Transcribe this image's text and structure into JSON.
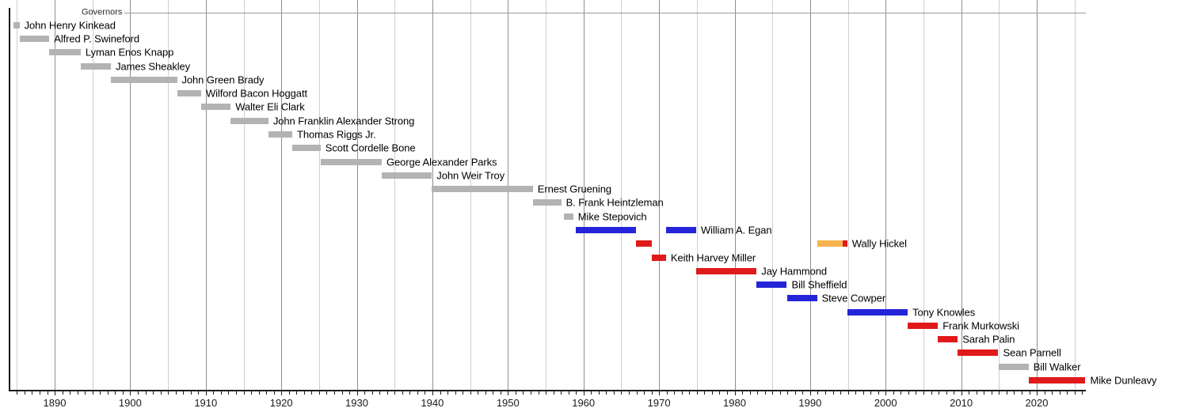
{
  "chart_data": {
    "type": "timeline",
    "title": "Governors",
    "x_axis": {
      "min": 1884.0,
      "max": 2026.5,
      "decade_labels": [
        "1890",
        "1900",
        "1910",
        "1920",
        "1930",
        "1940",
        "1950",
        "1960",
        "1970",
        "1980",
        "1990",
        "2000",
        "2010",
        "2020"
      ],
      "gridline_interval_years": 5,
      "tick_interval_years": 1,
      "grid": true
    },
    "colors": {
      "gray": "#b3b3b3",
      "blue": "#2424d9",
      "red": "#e01a1a",
      "orange": "#f7b34d"
    },
    "governors": [
      {
        "name": "John Henry Kinkead",
        "segments": [
          {
            "start": 1884.5,
            "end": 1885.35,
            "color": "gray"
          }
        ]
      },
      {
        "name": "Alfred P. Swineford",
        "segments": [
          {
            "start": 1885.35,
            "end": 1889.3,
            "color": "gray"
          }
        ]
      },
      {
        "name": "Lyman Enos Knapp",
        "segments": [
          {
            "start": 1889.3,
            "end": 1893.45,
            "color": "gray"
          }
        ]
      },
      {
        "name": "James Sheakley",
        "segments": [
          {
            "start": 1893.45,
            "end": 1897.45,
            "color": "gray"
          }
        ]
      },
      {
        "name": "John Green Brady",
        "segments": [
          {
            "start": 1897.45,
            "end": 1906.2,
            "color": "gray"
          }
        ]
      },
      {
        "name": "Wilford Bacon Hoggatt",
        "segments": [
          {
            "start": 1906.2,
            "end": 1909.4,
            "color": "gray"
          }
        ]
      },
      {
        "name": "Walter Eli Clark",
        "segments": [
          {
            "start": 1909.4,
            "end": 1913.3,
            "color": "gray"
          }
        ]
      },
      {
        "name": "John Franklin Alexander Strong",
        "segments": [
          {
            "start": 1913.3,
            "end": 1918.3,
            "color": "gray"
          }
        ]
      },
      {
        "name": "Thomas Riggs Jr.",
        "segments": [
          {
            "start": 1918.3,
            "end": 1921.45,
            "color": "gray"
          }
        ]
      },
      {
        "name": "Scott Cordelle Bone",
        "segments": [
          {
            "start": 1921.45,
            "end": 1925.2,
            "color": "gray"
          }
        ]
      },
      {
        "name": "George Alexander Parks",
        "segments": [
          {
            "start": 1925.2,
            "end": 1933.3,
            "color": "gray"
          }
        ]
      },
      {
        "name": "John Weir Troy",
        "segments": [
          {
            "start": 1933.3,
            "end": 1939.93,
            "color": "gray"
          }
        ]
      },
      {
        "name": "Ernest Gruening",
        "segments": [
          {
            "start": 1939.93,
            "end": 1953.3,
            "color": "gray"
          }
        ]
      },
      {
        "name": "B. Frank Heintzleman",
        "segments": [
          {
            "start": 1953.3,
            "end": 1957.05,
            "color": "gray"
          }
        ]
      },
      {
        "name": "Mike Stepovich",
        "segments": [
          {
            "start": 1957.4,
            "end": 1958.65,
            "color": "gray"
          }
        ]
      },
      {
        "name": "William A. Egan",
        "segments": [
          {
            "start": 1959.0,
            "end": 1966.92,
            "color": "blue"
          },
          {
            "start": 1970.92,
            "end": 1974.92,
            "color": "blue"
          }
        ]
      },
      {
        "name": "Wally Hickel",
        "segments": [
          {
            "start": 1966.92,
            "end": 1969.05,
            "color": "red"
          },
          {
            "start": 1990.92,
            "end": 1994.3,
            "color": "orange"
          },
          {
            "start": 1994.3,
            "end": 1994.92,
            "color": "red"
          }
        ]
      },
      {
        "name": "Keith Harvey Miller",
        "segments": [
          {
            "start": 1969.05,
            "end": 1970.92,
            "color": "red"
          }
        ]
      },
      {
        "name": "Jay Hammond",
        "segments": [
          {
            "start": 1974.92,
            "end": 1982.92,
            "color": "red"
          }
        ]
      },
      {
        "name": "Bill Sheffield",
        "segments": [
          {
            "start": 1982.92,
            "end": 1986.92,
            "color": "blue"
          }
        ]
      },
      {
        "name": "Steve Cowper",
        "segments": [
          {
            "start": 1986.92,
            "end": 1990.92,
            "color": "blue"
          }
        ]
      },
      {
        "name": "Tony Knowles",
        "segments": [
          {
            "start": 1994.92,
            "end": 2002.92,
            "color": "blue"
          }
        ]
      },
      {
        "name": "Frank Murkowski",
        "segments": [
          {
            "start": 2002.92,
            "end": 2006.92,
            "color": "red"
          }
        ]
      },
      {
        "name": "Sarah Palin",
        "segments": [
          {
            "start": 2006.92,
            "end": 2009.55,
            "color": "red"
          }
        ]
      },
      {
        "name": "Sean Parnell",
        "segments": [
          {
            "start": 2009.55,
            "end": 2014.92,
            "color": "red"
          }
        ]
      },
      {
        "name": "Bill Walker",
        "segments": [
          {
            "start": 2014.92,
            "end": 2018.92,
            "color": "gray"
          }
        ]
      },
      {
        "name": "Mike Dunleavy",
        "segments": [
          {
            "start": 2018.92,
            "end": 2026.45,
            "color": "red"
          }
        ]
      }
    ]
  }
}
